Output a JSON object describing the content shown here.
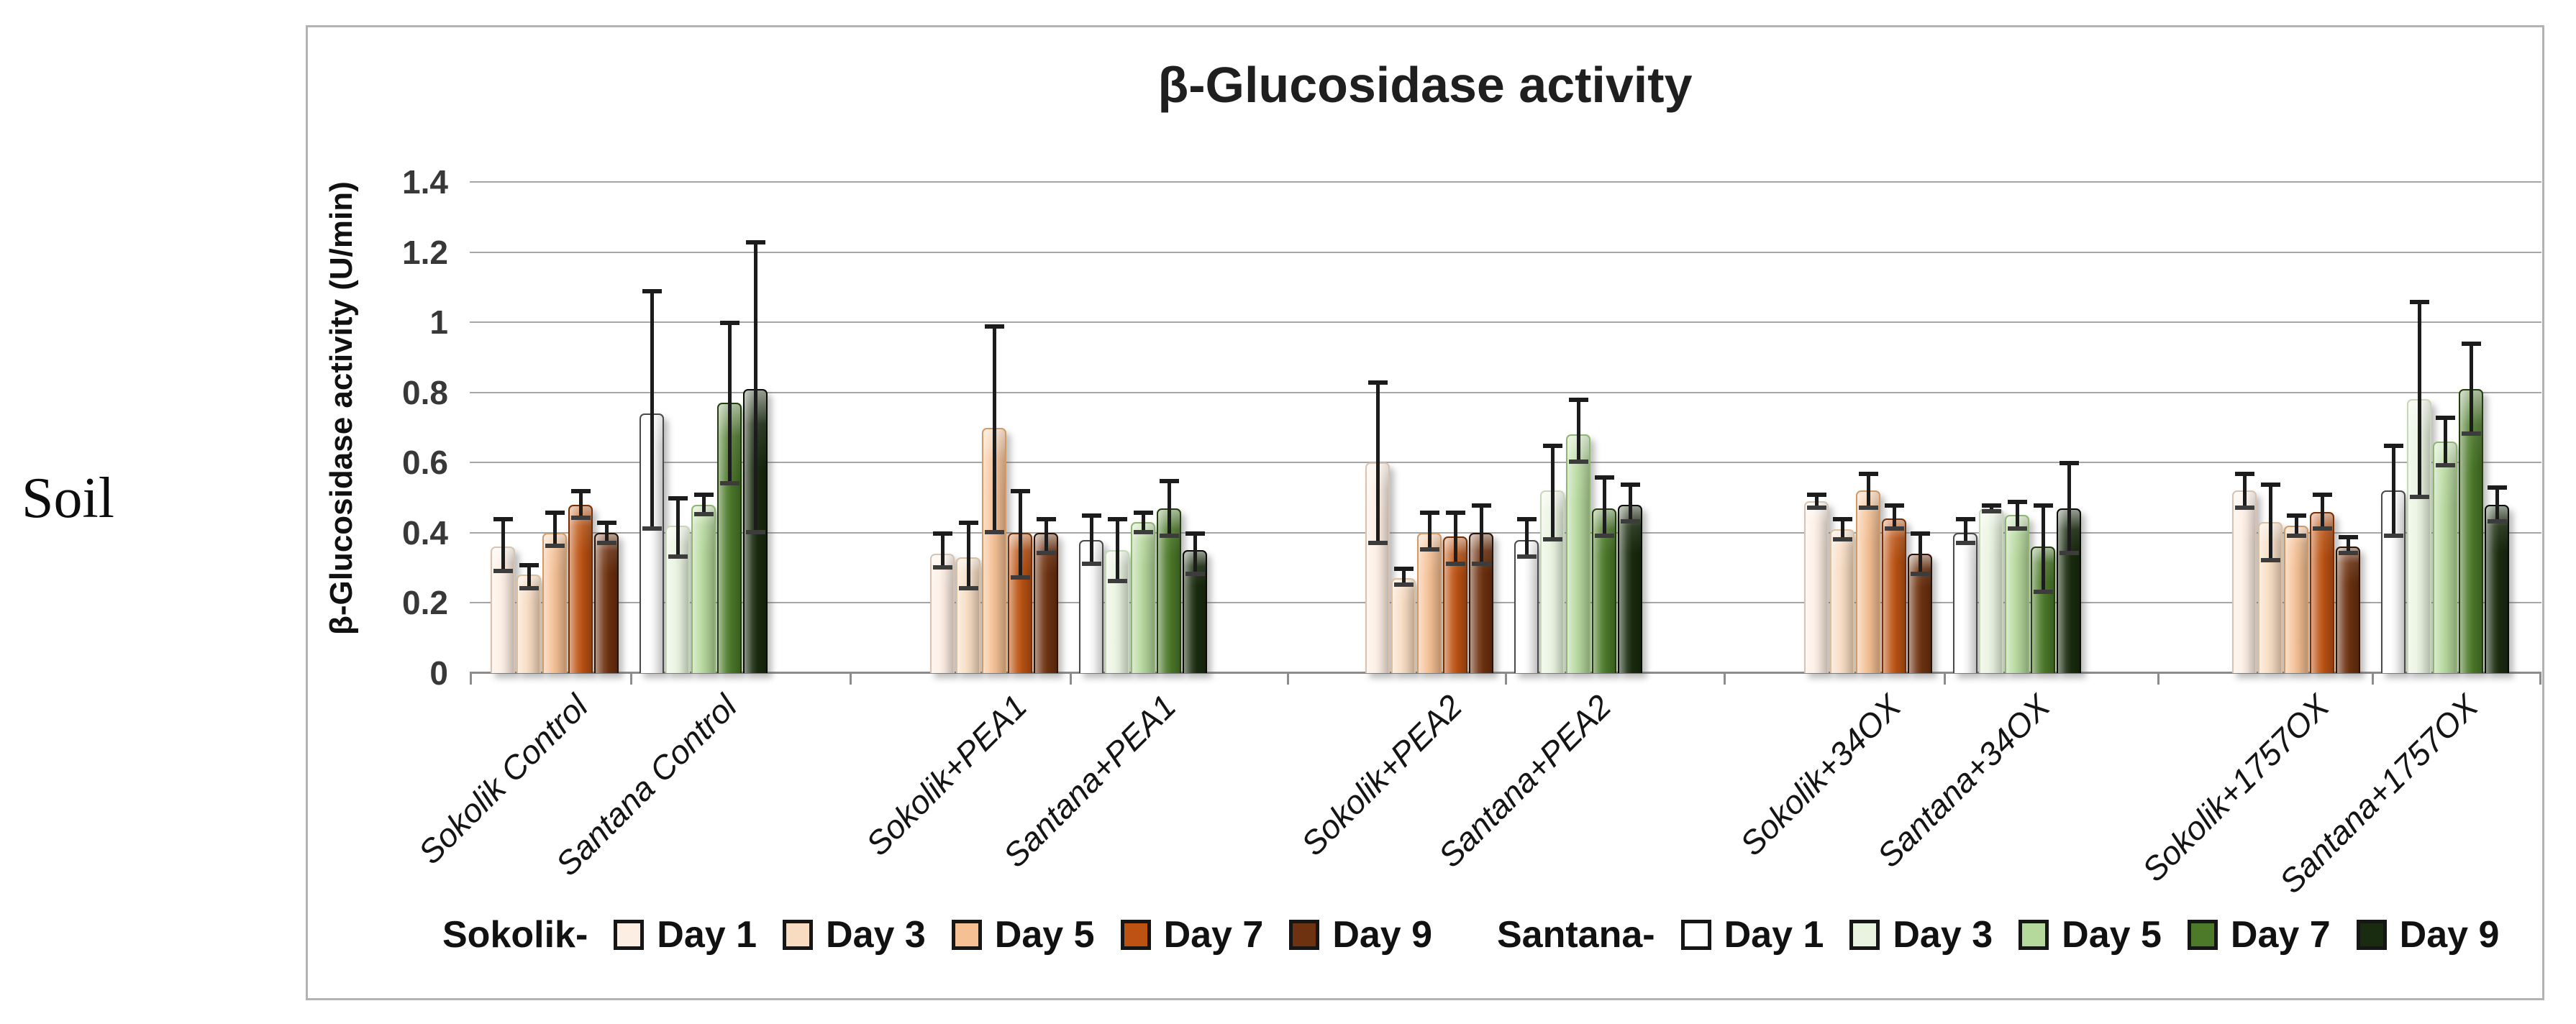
{
  "side_label": "Soil",
  "chart_data": {
    "type": "bar",
    "title": "β-Glucosidase activity",
    "ylabel": "β-Glucosidase activity (U/min)",
    "xlabel": "",
    "ylim": [
      0,
      1.4
    ],
    "yticks": [
      1.4,
      1.2,
      1,
      0.8,
      0.6,
      0.4,
      0.2,
      0
    ],
    "grid": true,
    "legend_position": "bottom",
    "series_labels": [
      "Day 1",
      "Day 3",
      "Day 5",
      "Day 7",
      "Day 9"
    ],
    "legend": {
      "sokolik_prefix": "Sokolik-",
      "santana_prefix": "Santana-",
      "day_labels": [
        "Day 1",
        "Day 3",
        "Day 5",
        "Day 7",
        "Day 9"
      ]
    },
    "colors": {
      "sokolik": [
        "#fdeee3",
        "#f8dcc2",
        "#f5c094",
        "#bd5312",
        "#6e3210"
      ],
      "sokolik_borders": [
        "#d8c3b2",
        "#dcbf9f",
        "#d29a64",
        "#772f05",
        "#2a1204"
      ],
      "santana": [
        "#ffffff",
        "#e9f3df",
        "#b5d89c",
        "#4c7a29",
        "#1a2c0f"
      ],
      "santana_borders": [
        "#4a4a4a",
        "#c6d8b8",
        "#90b673",
        "#233f0e",
        "#070c03"
      ]
    },
    "groups": [
      {
        "label": "Sokolik Control",
        "variety": "sokolik",
        "values": [
          0.36,
          0.28,
          0.4,
          0.48,
          0.4
        ],
        "err_low": [
          0.29,
          0.24,
          0.36,
          0.44,
          0.37
        ],
        "err_high": [
          0.44,
          0.31,
          0.46,
          0.52,
          0.43
        ]
      },
      {
        "label": "Santana Control",
        "variety": "santana",
        "values": [
          0.74,
          0.42,
          0.48,
          0.77,
          0.81
        ],
        "err_low": [
          0.41,
          0.33,
          0.45,
          0.54,
          0.4
        ],
        "err_high": [
          1.09,
          0.5,
          0.51,
          1.0,
          1.23
        ]
      },
      {
        "label": "Sokolik+PEA1",
        "variety": "sokolik",
        "values": [
          0.34,
          0.33,
          0.7,
          0.4,
          0.4
        ],
        "err_low": [
          0.3,
          0.24,
          0.4,
          0.27,
          0.34
        ],
        "err_high": [
          0.4,
          0.43,
          0.99,
          0.52,
          0.44
        ]
      },
      {
        "label": "Santana+PEA1",
        "variety": "santana",
        "values": [
          0.38,
          0.35,
          0.43,
          0.47,
          0.35
        ],
        "err_low": [
          0.31,
          0.26,
          0.4,
          0.39,
          0.28
        ],
        "err_high": [
          0.45,
          0.44,
          0.46,
          0.55,
          0.4
        ]
      },
      {
        "label": "Sokolik+PEA2",
        "variety": "sokolik",
        "values": [
          0.6,
          0.27,
          0.4,
          0.39,
          0.4
        ],
        "err_low": [
          0.37,
          0.25,
          0.35,
          0.31,
          0.31
        ],
        "err_high": [
          0.83,
          0.3,
          0.46,
          0.46,
          0.48
        ]
      },
      {
        "label": "Santana+PEA2",
        "variety": "santana",
        "values": [
          0.38,
          0.52,
          0.68,
          0.47,
          0.48
        ],
        "err_low": [
          0.33,
          0.38,
          0.6,
          0.39,
          0.43
        ],
        "err_high": [
          0.44,
          0.65,
          0.78,
          0.56,
          0.54
        ]
      },
      {
        "label": "Sokolik+34OX",
        "variety": "sokolik",
        "values": [
          0.49,
          0.41,
          0.52,
          0.44,
          0.34
        ],
        "err_low": [
          0.47,
          0.38,
          0.47,
          0.41,
          0.28
        ],
        "err_high": [
          0.51,
          0.44,
          0.57,
          0.48,
          0.4
        ]
      },
      {
        "label": "Santana+34OX",
        "variety": "santana",
        "values": [
          0.4,
          0.47,
          0.45,
          0.36,
          0.47
        ],
        "err_low": [
          0.37,
          0.46,
          0.41,
          0.23,
          0.34
        ],
        "err_high": [
          0.44,
          0.48,
          0.49,
          0.48,
          0.6
        ]
      },
      {
        "label": "Sokolik+1757OX",
        "variety": "sokolik",
        "values": [
          0.52,
          0.43,
          0.42,
          0.46,
          0.36
        ],
        "err_low": [
          0.47,
          0.32,
          0.39,
          0.41,
          0.34
        ],
        "err_high": [
          0.57,
          0.54,
          0.45,
          0.51,
          0.39
        ]
      },
      {
        "label": "Santana+1757OX",
        "variety": "santana",
        "values": [
          0.52,
          0.78,
          0.66,
          0.81,
          0.48
        ],
        "err_low": [
          0.39,
          0.5,
          0.59,
          0.68,
          0.43
        ],
        "err_high": [
          0.65,
          1.06,
          0.73,
          0.94,
          0.53
        ]
      }
    ]
  }
}
